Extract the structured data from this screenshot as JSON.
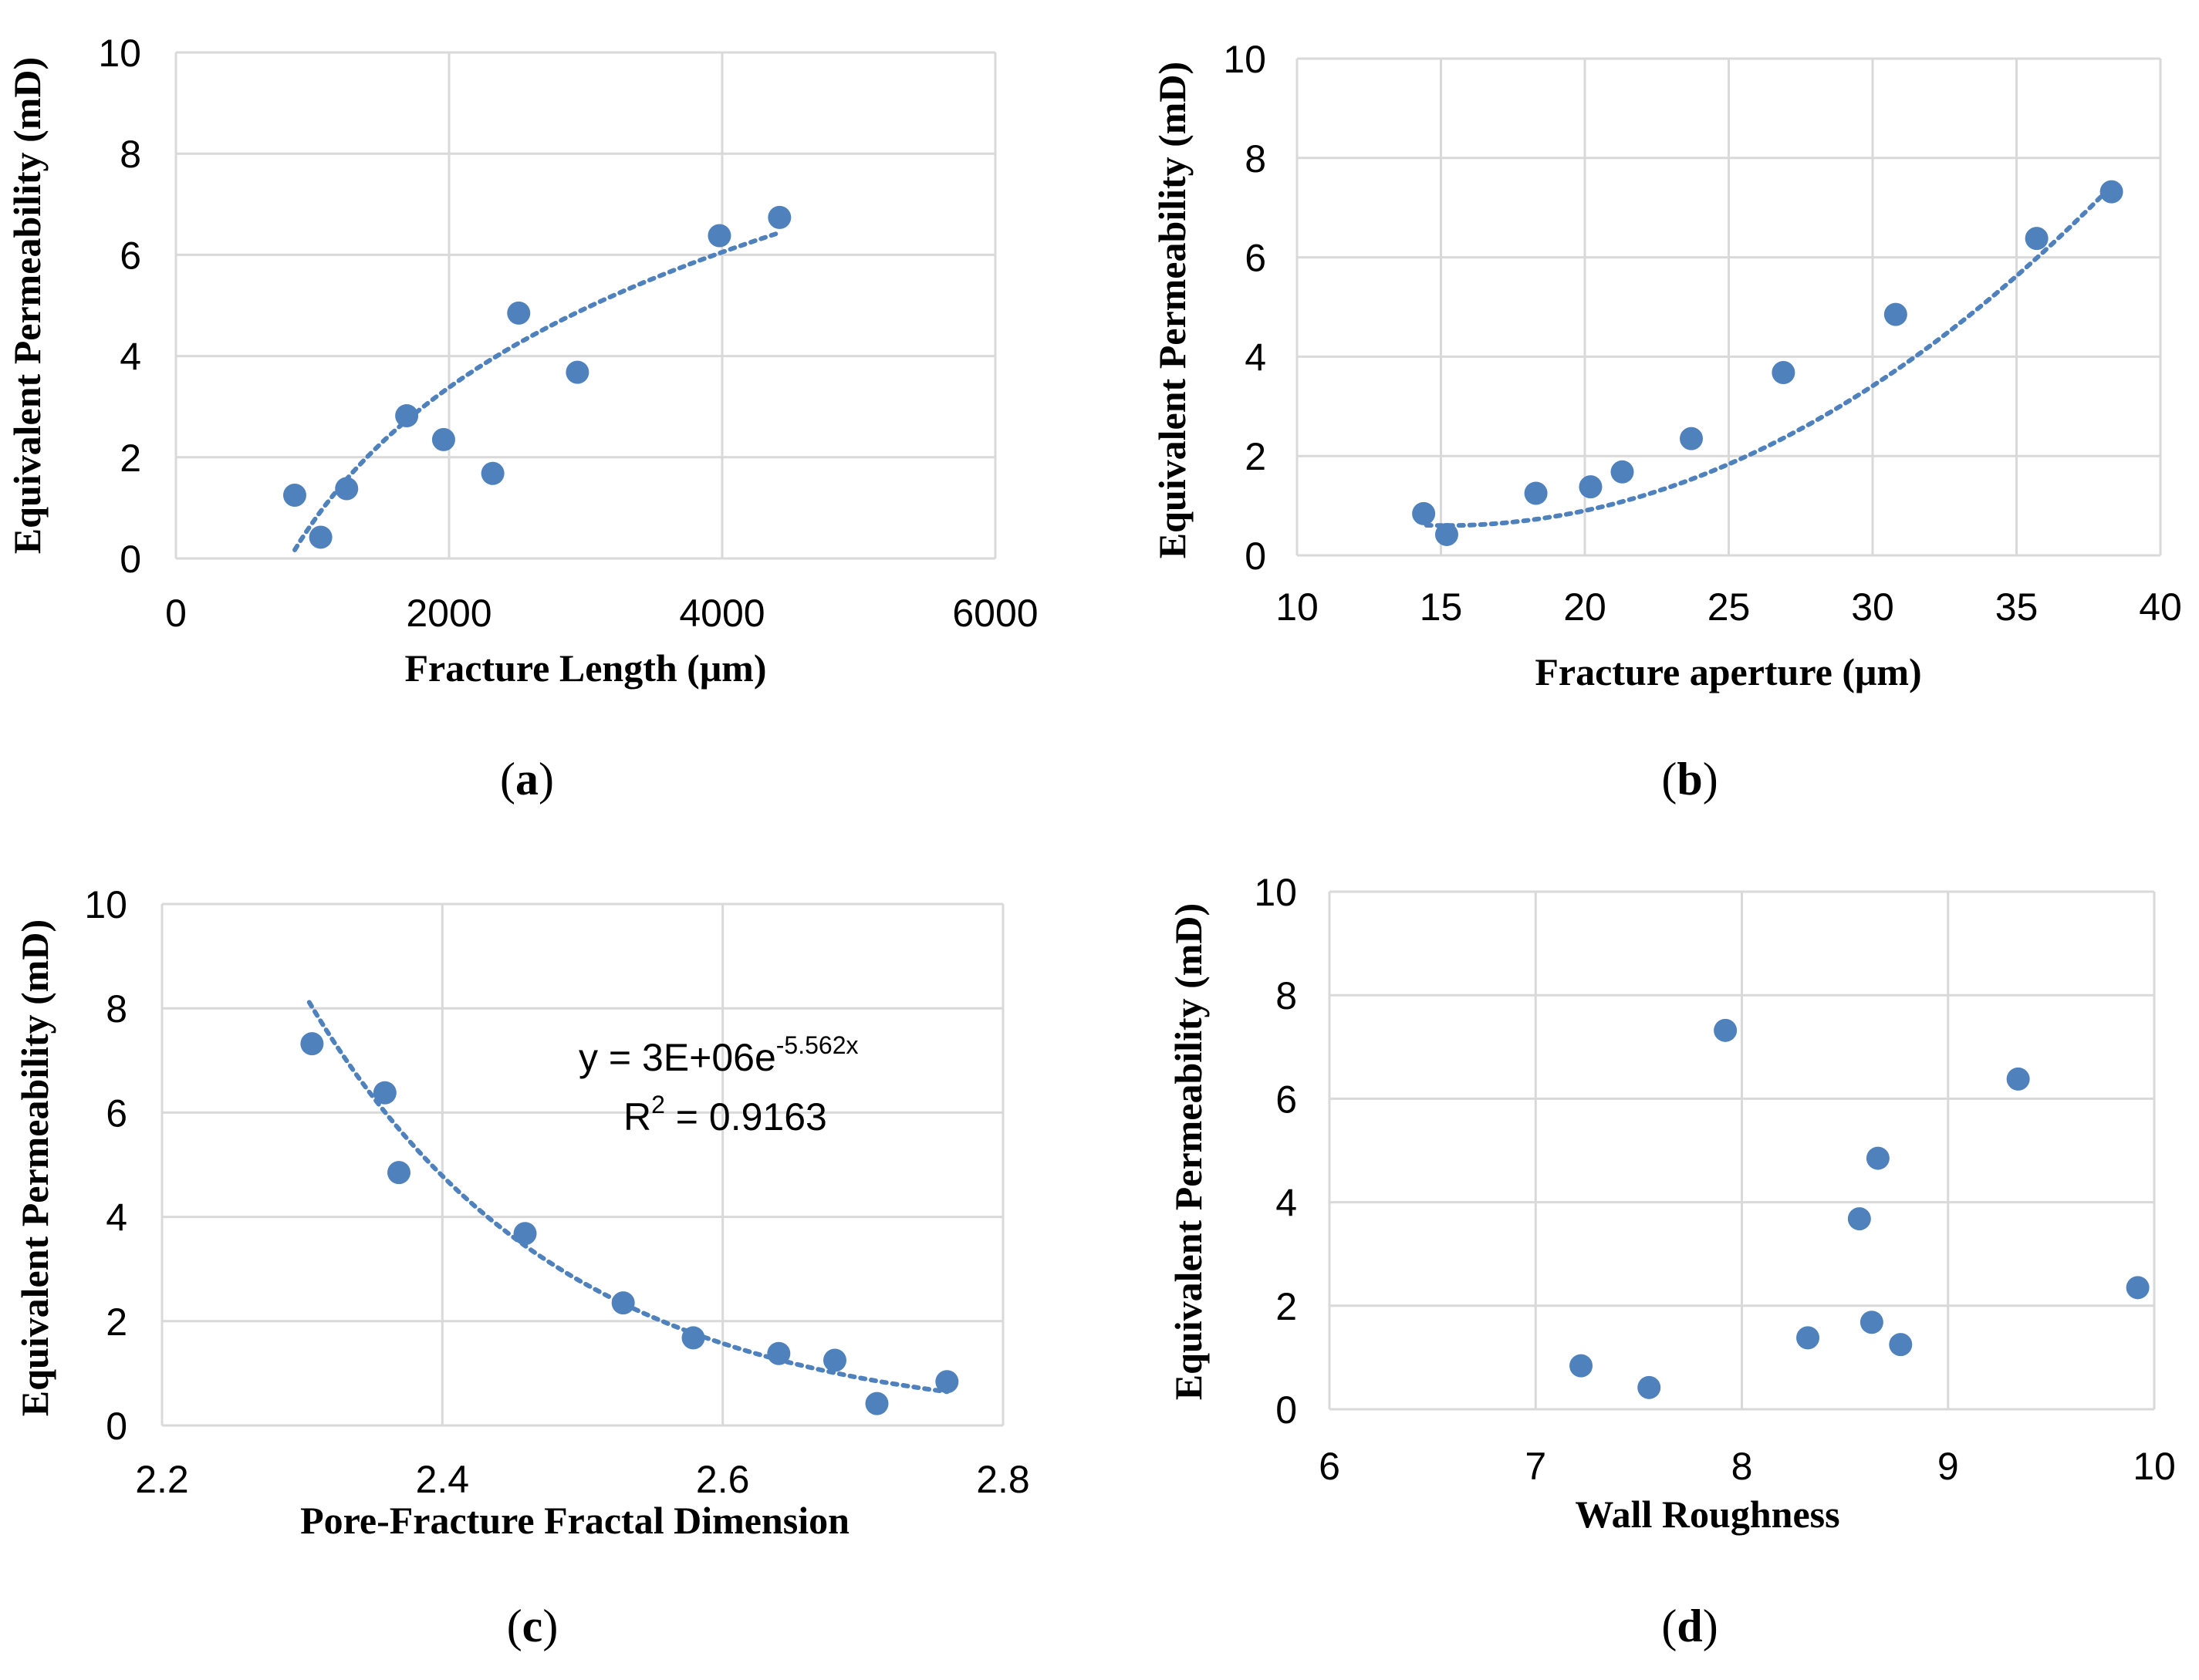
{
  "colors": {
    "point": "#4f81bd",
    "grid": "#d9d9d9",
    "text": "#000000"
  },
  "chart_data": [
    {
      "id": "a",
      "type": "scatter",
      "panel_label": "(a)",
      "label_letter": "a",
      "xlabel": "Fracture Length (μm)",
      "ylabel": "Equivalent Permeability (mD)",
      "xlim": [
        0,
        6000
      ],
      "ylim": [
        0,
        10
      ],
      "xticks": [
        0,
        2000,
        4000,
        6000
      ],
      "yticks": [
        0,
        2,
        4,
        6,
        8,
        10
      ],
      "tick_labels_x": [
        "0",
        "2000",
        "4000",
        "6000"
      ],
      "tick_labels_y": [
        "0",
        "2",
        "4",
        "6",
        "8",
        "10"
      ],
      "grid": "both",
      "points": [
        [
          870,
          1.25
        ],
        [
          1060,
          0.42
        ],
        [
          1250,
          1.38
        ],
        [
          1690,
          2.82
        ],
        [
          1960,
          2.35
        ],
        [
          2320,
          1.68
        ],
        [
          2510,
          4.85
        ],
        [
          2940,
          3.68
        ],
        [
          3980,
          6.38
        ],
        [
          4420,
          6.74
        ]
      ],
      "trendline": {
        "type": "logarithmic",
        "a": 3.857,
        "b": 25.937,
        "x_range": [
          870,
          4420
        ]
      }
    },
    {
      "id": "b",
      "type": "scatter",
      "panel_label": "(b)",
      "label_letter": "b",
      "xlabel": "Fracture aperture (μm)",
      "ylabel": "Equivalent Permeability (mD)",
      "xlim": [
        10,
        40
      ],
      "ylim": [
        0,
        10
      ],
      "xticks": [
        10,
        15,
        20,
        25,
        30,
        35,
        40
      ],
      "yticks": [
        0,
        2,
        4,
        6,
        8,
        10
      ],
      "tick_labels_x": [
        "10",
        "15",
        "20",
        "25",
        "30",
        "35",
        "40"
      ],
      "tick_labels_y": [
        "0",
        "2",
        "4",
        "6",
        "8",
        "10"
      ],
      "grid": "both",
      "points": [
        [
          14.4,
          0.84
        ],
        [
          15.2,
          0.42
        ],
        [
          18.3,
          1.25
        ],
        [
          20.2,
          1.38
        ],
        [
          21.3,
          1.68
        ],
        [
          23.7,
          2.35
        ],
        [
          26.9,
          3.68
        ],
        [
          30.8,
          4.85
        ],
        [
          35.7,
          6.38
        ],
        [
          38.3,
          7.32
        ]
      ],
      "trendline": {
        "type": "polynomial",
        "coef": [
          0.01276,
          -0.3868,
          3.5315
        ],
        "x_range": [
          14.5,
          38.3
        ]
      }
    },
    {
      "id": "c",
      "type": "scatter",
      "panel_label": "(c)",
      "label_letter": "c",
      "xlabel": "Pore-Fracture Fractal Dimension",
      "ylabel": "Equivalent Permeability (mD)",
      "xlim": [
        2.2,
        2.8
      ],
      "ylim": [
        0,
        10
      ],
      "xticks": [
        2.2,
        2.4,
        2.6,
        2.8
      ],
      "yticks": [
        0,
        2,
        4,
        6,
        8,
        10
      ],
      "tick_labels_x": [
        "2.2",
        "2.4",
        "2.6",
        "2.8"
      ],
      "tick_labels_y": [
        "0",
        "2",
        "4",
        "6",
        "8",
        "10"
      ],
      "grid": "both",
      "points": [
        [
          2.307,
          7.32
        ],
        [
          2.359,
          6.38
        ],
        [
          2.369,
          4.85
        ],
        [
          2.459,
          3.68
        ],
        [
          2.529,
          2.35
        ],
        [
          2.579,
          1.68
        ],
        [
          2.64,
          1.38
        ],
        [
          2.68,
          1.25
        ],
        [
          2.71,
          0.42
        ],
        [
          2.76,
          0.84
        ]
      ],
      "trendline": {
        "type": "exponential",
        "a": 3000000,
        "b": -5.562,
        "x_range": [
          2.305,
          2.76
        ]
      },
      "equation": {
        "prefix": "y = 3E+06e",
        "exponent": "-5.562x",
        "r2_prefix": "R",
        "r2_sup": "2",
        "r2_value": " = 0.9163"
      }
    },
    {
      "id": "d",
      "type": "scatter",
      "panel_label": "(d)",
      "label_letter": "d",
      "xlabel": "Wall Roughness",
      "ylabel": "Equivalent Permeability (mD)",
      "xlim": [
        6,
        10
      ],
      "ylim": [
        0,
        10
      ],
      "xticks": [
        6,
        7,
        8,
        9,
        10
      ],
      "yticks": [
        0,
        2,
        4,
        6,
        8,
        10
      ],
      "tick_labels_x": [
        "6",
        "7",
        "8",
        "9",
        "10"
      ],
      "tick_labels_y": [
        "0",
        "2",
        "4",
        "6",
        "8",
        "10"
      ],
      "grid": "both",
      "points": [
        [
          7.22,
          0.84
        ],
        [
          7.55,
          0.42
        ],
        [
          7.92,
          7.32
        ],
        [
          8.32,
          1.38
        ],
        [
          8.57,
          3.68
        ],
        [
          8.63,
          1.68
        ],
        [
          8.66,
          4.85
        ],
        [
          8.77,
          1.25
        ],
        [
          9.34,
          6.38
        ],
        [
          9.92,
          2.35
        ]
      ]
    }
  ]
}
